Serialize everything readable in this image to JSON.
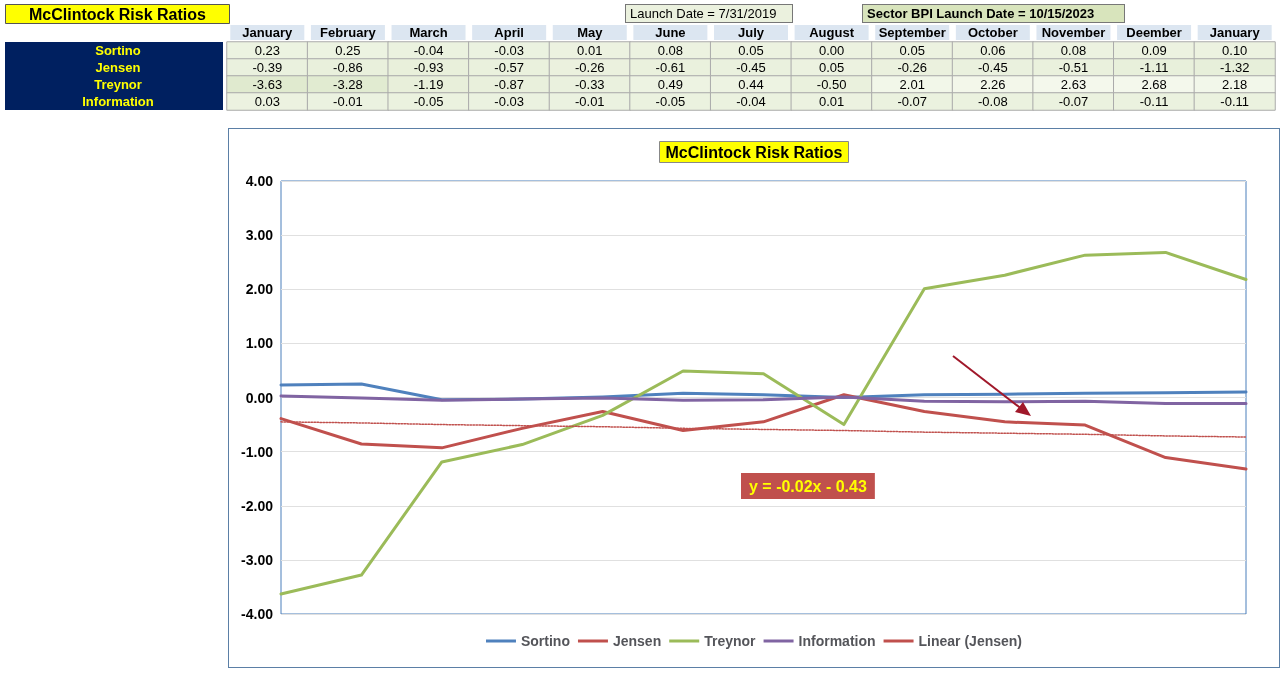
{
  "chart_data": [
    {
      "type": "heatmap",
      "title": "McClintock Risk Ratios",
      "categories": [
        "January",
        "February",
        "March",
        "April",
        "May",
        "June",
        "July",
        "August",
        "September",
        "October",
        "November",
        "Deember",
        "January"
      ],
      "y_categories": [
        "Sortino",
        "Jensen",
        "Treynor",
        "Information"
      ],
      "cells": [
        [
          0.23,
          0.25,
          -0.04,
          -0.03,
          0.01,
          0.08,
          0.05,
          0.0,
          0.05,
          0.06,
          0.08,
          0.09,
          0.1
        ],
        [
          -0.39,
          -0.86,
          -0.93,
          -0.57,
          -0.26,
          -0.61,
          -0.45,
          0.05,
          -0.26,
          -0.45,
          -0.51,
          -1.11,
          -1.32
        ],
        [
          -3.63,
          -3.28,
          -1.19,
          -0.87,
          -0.33,
          0.49,
          0.44,
          -0.5,
          2.01,
          2.26,
          2.63,
          2.68,
          2.18
        ],
        [
          0.03,
          -0.01,
          -0.05,
          -0.03,
          -0.01,
          -0.05,
          -0.04,
          0.01,
          -0.07,
          -0.08,
          -0.07,
          -0.11,
          -0.11
        ]
      ],
      "cell_labels": [
        [
          "0.23",
          "0.25",
          "-0.04",
          "-0.03",
          "0.01",
          "0.08",
          "0.05",
          "0.00",
          "0.05",
          "0.06",
          "0.08",
          "0.09",
          "0.10"
        ],
        [
          "-0.39",
          "-0.86",
          "-0.93",
          "-0.57",
          "-0.26",
          "-0.61",
          "-0.45",
          "0.05",
          "-0.26",
          "-0.45",
          "-0.51",
          "-1.11",
          "-1.32"
        ],
        [
          "-3.63",
          "-3.28",
          "-1.19",
          "-0.87",
          "-0.33",
          "0.49",
          "0.44",
          "-0.50",
          "2.01",
          "2.26",
          "2.63",
          "2.68",
          "2.18"
        ],
        [
          "0.03",
          "-0.01",
          "-0.05",
          "-0.03",
          "-0.01",
          "-0.05",
          "-0.04",
          "0.01",
          "-0.07",
          "-0.08",
          "-0.07",
          "-0.11",
          "-0.11"
        ]
      ],
      "data_labels": true,
      "annotations": [
        "Launch Date = 7/31/2019",
        "Sector BPI Launch Date = 10/15/2023"
      ]
    },
    {
      "type": "line",
      "title": "McClintock Risk Ratios",
      "categories": [
        null,
        null,
        null,
        null,
        null,
        null,
        null,
        null,
        null,
        null,
        null,
        null,
        null
      ],
      "series": [
        {
          "name": "Sortino",
          "color": "#4f81bd",
          "values": [
            0.23,
            0.25,
            -0.04,
            -0.03,
            0.01,
            0.08,
            0.05,
            0.0,
            0.05,
            0.06,
            0.08,
            0.09,
            0.1
          ]
        },
        {
          "name": "Jensen",
          "color": "#c0504d",
          "values": [
            -0.39,
            -0.86,
            -0.93,
            -0.57,
            -0.26,
            -0.61,
            -0.45,
            0.05,
            -0.26,
            -0.45,
            -0.51,
            -1.11,
            -1.32
          ]
        },
        {
          "name": "Treynor",
          "color": "#9bbb59",
          "values": [
            -3.63,
            -3.28,
            -1.19,
            -0.87,
            -0.33,
            0.49,
            0.44,
            -0.5,
            2.01,
            2.26,
            2.63,
            2.68,
            2.18
          ]
        },
        {
          "name": "Information",
          "color": "#8064a2",
          "values": [
            0.03,
            -0.01,
            -0.05,
            -0.03,
            -0.01,
            -0.05,
            -0.04,
            0.01,
            -0.07,
            -0.08,
            -0.07,
            -0.11,
            -0.11
          ]
        },
        {
          "name": "Linear (Jensen)",
          "color": "#c0504d",
          "line_style": "dotted",
          "values": [
            -0.45,
            -0.47,
            -0.5,
            -0.52,
            -0.54,
            -0.57,
            -0.59,
            -0.61,
            -0.64,
            -0.66,
            -0.68,
            -0.71,
            -0.73
          ]
        }
      ],
      "ylim": [
        -4,
        4
      ],
      "yticks": [
        {
          "value": -4,
          "label": "-4.00"
        },
        {
          "value": -3,
          "label": "-3.00"
        },
        {
          "value": -2,
          "label": "-2.00"
        },
        {
          "value": -1,
          "label": "-1.00"
        },
        {
          "value": 0,
          "label": "0.00"
        },
        {
          "value": 1,
          "label": "1.00"
        },
        {
          "value": 2,
          "label": "2.00"
        },
        {
          "value": 3,
          "label": "3.00"
        },
        {
          "value": 4,
          "label": "4.00"
        }
      ],
      "annotations": [
        "y = -0.02x - 0.43"
      ],
      "grid": "y",
      "legend": "bottom",
      "tick_labels": "y",
      "marker": "none",
      "line_style": "solid"
    }
  ]
}
